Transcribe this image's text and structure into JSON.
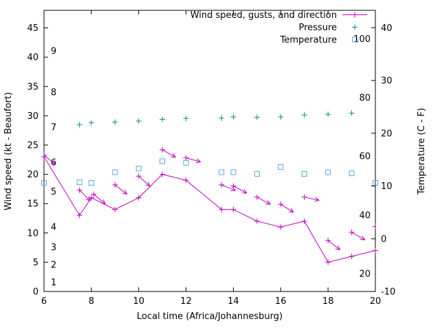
{
  "chart_data": {
    "type": "line",
    "title": "",
    "xlabel": "Local time (Africa/Johannesburg)",
    "ylabel_left": "Wind speed (kt - Beaufort)",
    "ylabel_right": "Temperature (C - F)",
    "x_range": [
      6,
      20
    ],
    "x_ticks": [
      6,
      8,
      10,
      12,
      14,
      16,
      18,
      20
    ],
    "y_left_range": [
      0,
      48
    ],
    "y_left_ticks": [
      0,
      5,
      10,
      15,
      20,
      25,
      30,
      35,
      40,
      45
    ],
    "y_right_range": [
      -10,
      43.3
    ],
    "y_right_ticks": [
      -10,
      0,
      10,
      20,
      30,
      40
    ],
    "grid": false,
    "legend_position": "top-right-inside",
    "legend": [
      {
        "label": "Wind speed, gusts, and direction",
        "style": "linespoints",
        "marker": "plus",
        "color": "#BF00BF"
      },
      {
        "label": "Pressure",
        "style": "points",
        "marker": "plus",
        "color": "#008C8C"
      },
      {
        "label": "Temperature",
        "style": "points",
        "marker": "square",
        "color": "#56A8D8"
      }
    ],
    "beaufort_labels": [
      {
        "label": "1",
        "kt": 1.5
      },
      {
        "label": "2",
        "kt": 4.5
      },
      {
        "label": "3",
        "kt": 7.5
      },
      {
        "label": "4",
        "kt": 11
      },
      {
        "label": "5",
        "kt": 17
      },
      {
        "label": "6",
        "kt": 22
      },
      {
        "label": "7",
        "kt": 28
      },
      {
        "label": "8",
        "kt": 34
      },
      {
        "label": "9",
        "kt": 41
      }
    ],
    "fahrenheit_labels": [
      {
        "label": "20",
        "c": -6.7
      },
      {
        "label": "40",
        "c": 4.4
      },
      {
        "label": "60",
        "c": 15.6
      },
      {
        "label": "80",
        "c": 26.7
      },
      {
        "label": "100",
        "c": 37.8
      }
    ],
    "series": {
      "wind_speed": {
        "name": "Wind speed (kt)",
        "color": "#BF00BF",
        "axis": "left",
        "x": [
          6,
          7.5,
          8,
          9,
          10,
          11,
          12,
          13.5,
          14,
          15,
          16,
          17,
          18,
          19,
          20
        ],
        "y": [
          23,
          13,
          16,
          14,
          16,
          20,
          19,
          14,
          14,
          12,
          11,
          12,
          5,
          6,
          7
        ]
      },
      "gusts": {
        "name": "Gusts and direction",
        "color": "#BF00BF",
        "axis": "left",
        "points": [
          {
            "x": 6,
            "y": 23.3,
            "angle": 40
          },
          {
            "x": 7.5,
            "y": 17.3,
            "angle": 45
          },
          {
            "x": 8.1,
            "y": 16.6,
            "angle": 40
          },
          {
            "x": 9,
            "y": 18.2,
            "angle": 38
          },
          {
            "x": 10,
            "y": 19.7,
            "angle": 42
          },
          {
            "x": 11,
            "y": 24.2,
            "angle": 30
          },
          {
            "x": 12,
            "y": 22.8,
            "angle": 15
          },
          {
            "x": 13.5,
            "y": 18.2,
            "angle": 22
          },
          {
            "x": 14,
            "y": 18.0,
            "angle": 28
          },
          {
            "x": 15,
            "y": 16.1,
            "angle": 28
          },
          {
            "x": 16,
            "y": 14.9,
            "angle": 32
          },
          {
            "x": 17,
            "y": 16.1,
            "angle": 12
          },
          {
            "x": 18,
            "y": 8.7,
            "angle": 38
          },
          {
            "x": 19,
            "y": 10.1,
            "angle": 30
          },
          {
            "x": 20,
            "y": 11.1,
            "angle": 28
          }
        ]
      },
      "pressure": {
        "name": "Pressure",
        "color": "#008C8C",
        "axis": "left",
        "x": [
          7.5,
          8,
          9,
          10,
          11,
          12,
          13.5,
          14,
          15,
          16,
          17,
          18,
          19
        ],
        "y": [
          28.5,
          28.8,
          28.9,
          29.1,
          29.4,
          29.55,
          29.6,
          29.8,
          29.75,
          29.8,
          30.15,
          30.25,
          30.45
        ]
      },
      "temperature": {
        "name": "Temperature (C)",
        "color": "#56A8D8",
        "axis": "right",
        "x": [
          6,
          7.5,
          8,
          9,
          10,
          11,
          12,
          13.5,
          14,
          15,
          16,
          17,
          18,
          19,
          20
        ],
        "c": [
          10.6,
          10.7,
          10.6,
          12.6,
          13.3,
          14.7,
          14.4,
          12.6,
          12.6,
          12.3,
          13.6,
          12.3,
          12.6,
          12.4,
          10.6
        ]
      }
    }
  }
}
